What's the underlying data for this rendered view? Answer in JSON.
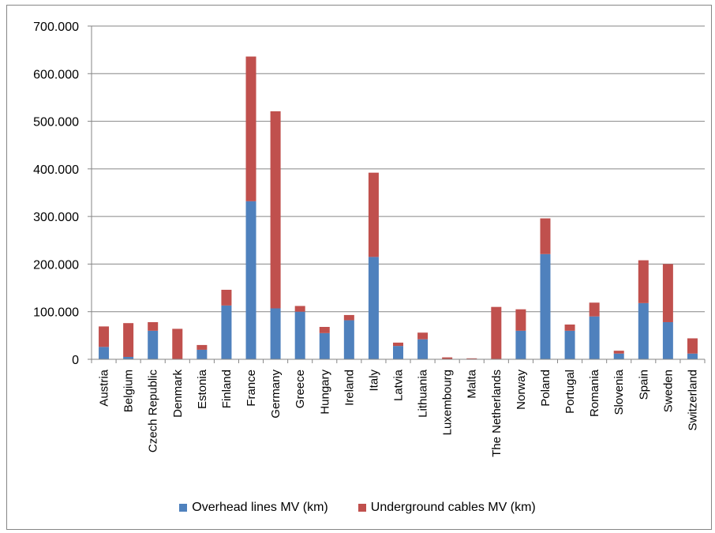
{
  "chart_data": {
    "type": "bar",
    "stacked": true,
    "categories": [
      "Austria",
      "Belgium",
      "Czech Republic",
      "Denmark",
      "Estonia",
      "Finland",
      "France",
      "Germany",
      "Greece",
      "Hungary",
      "Ireland",
      "Italy",
      "Latvia",
      "Lithuania",
      "Luxembourg",
      "Malta",
      "The Netherlands",
      "Norway",
      "Poland",
      "Portugal",
      "Romania",
      "Slovenia",
      "Spain",
      "Sweden",
      "Switzerland"
    ],
    "series": [
      {
        "name": "Overhead lines MV (km)",
        "color": "#4F81BD",
        "values": [
          26000,
          5000,
          60000,
          0,
          20000,
          113000,
          332000,
          107000,
          100000,
          55000,
          82000,
          215000,
          28000,
          42000,
          0,
          0,
          0,
          60000,
          221000,
          60000,
          90000,
          12000,
          118000,
          78000,
          12000
        ]
      },
      {
        "name": "Underground cables MV (km)",
        "color": "#C0504D",
        "values": [
          43000,
          71000,
          18000,
          64000,
          10000,
          33000,
          304000,
          414000,
          12000,
          13000,
          11000,
          177000,
          7000,
          14000,
          4000,
          2000,
          110000,
          45000,
          75000,
          13000,
          29000,
          6000,
          90000,
          122000,
          32000
        ]
      }
    ],
    "xlabel": "",
    "ylabel": "",
    "ylim": [
      0,
      700000
    ],
    "yticks": [
      "0",
      "100.000",
      "200.000",
      "300.000",
      "400.000",
      "500.000",
      "600.000",
      "700.000"
    ],
    "grid": true,
    "legend_position": "bottom"
  }
}
